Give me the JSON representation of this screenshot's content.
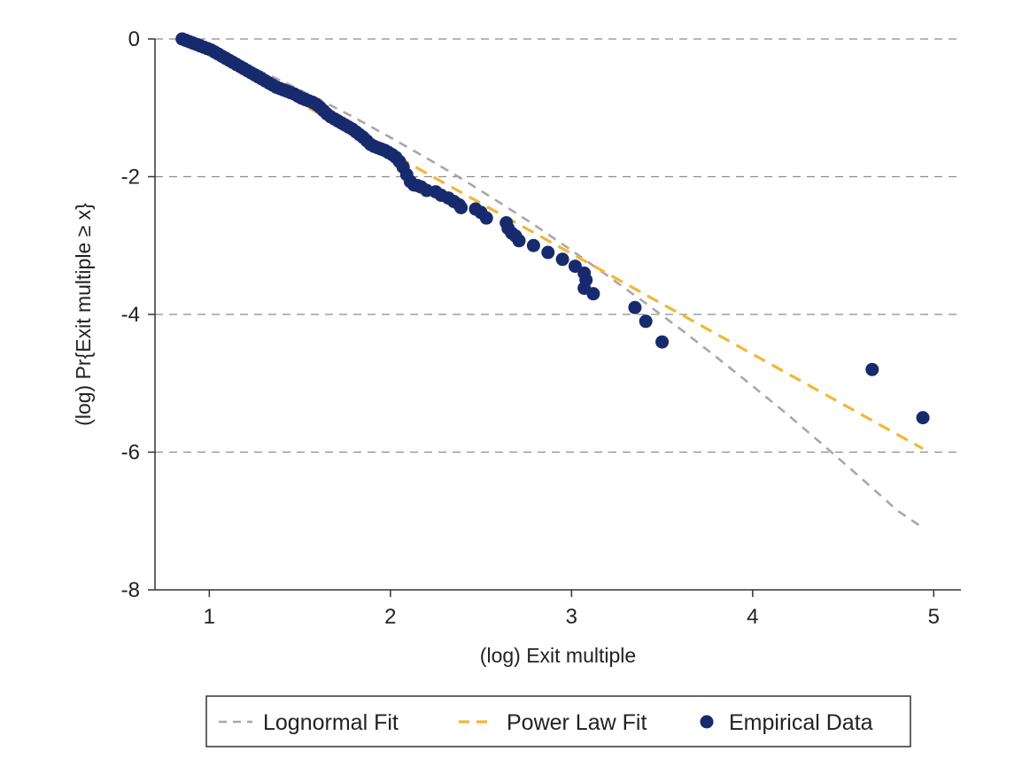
{
  "chart_data": {
    "type": "scatter",
    "title": "",
    "xlabel": "(log) Exit multiple",
    "ylabel": "(log) Pr{Exit multiple ≥ x}",
    "xlim": [
      0.7,
      5.15
    ],
    "ylim": [
      -8,
      0
    ],
    "x_ticks": [
      1,
      2,
      3,
      4,
      5
    ],
    "y_ticks": [
      0,
      -2,
      -4,
      -6,
      -8
    ],
    "grid": "horizontal dashed",
    "legend_placement": "bottom",
    "colors": {
      "lognormal": "#a8a8a8",
      "power_law": "#f2b638",
      "empirical": "#172a6e",
      "grid": "#8c8c8c",
      "axis": "#333333"
    },
    "series": [
      {
        "name": "Lognormal Fit",
        "type": "line",
        "style": "dashed",
        "x": [
          0.86,
          1.0,
          1.2,
          1.4,
          1.6,
          1.8,
          2.0,
          2.2,
          2.4,
          2.6,
          2.8,
          3.0,
          3.2,
          3.4,
          3.6,
          3.8,
          4.0,
          4.2,
          4.4,
          4.6,
          4.8,
          4.94
        ],
        "y": [
          0.0,
          -0.14,
          -0.37,
          -0.61,
          -0.87,
          -1.14,
          -1.43,
          -1.73,
          -2.04,
          -2.37,
          -2.71,
          -3.07,
          -3.44,
          -3.82,
          -4.21,
          -4.62,
          -5.04,
          -5.47,
          -5.92,
          -6.38,
          -6.85,
          -7.1
        ]
      },
      {
        "name": "Power Law Fit",
        "type": "line",
        "style": "dashed",
        "x": [
          1.55,
          4.94
        ],
        "y": [
          -1.0,
          -5.95
        ]
      },
      {
        "name": "Empirical Data",
        "type": "scatter",
        "x": [
          0.85,
          0.87,
          0.89,
          0.91,
          0.93,
          0.95,
          0.97,
          0.99,
          1.01,
          1.03,
          1.05,
          1.07,
          1.09,
          1.11,
          1.13,
          1.15,
          1.17,
          1.19,
          1.21,
          1.23,
          1.25,
          1.27,
          1.29,
          1.31,
          1.33,
          1.35,
          1.37,
          1.39,
          1.41,
          1.43,
          1.45,
          1.47,
          1.49,
          1.51,
          1.53,
          1.55,
          1.57,
          1.59,
          1.61,
          1.63,
          1.65,
          1.67,
          1.69,
          1.71,
          1.73,
          1.75,
          1.77,
          1.79,
          1.81,
          1.83,
          1.85,
          1.87,
          1.89,
          1.91,
          1.93,
          1.95,
          1.97,
          1.99,
          2.01,
          2.03,
          2.05,
          2.07,
          2.09,
          2.11,
          2.13,
          2.15,
          2.17,
          2.2,
          2.25,
          2.28,
          2.32,
          2.35,
          2.38,
          2.39,
          2.47,
          2.5,
          2.53,
          2.64,
          2.65,
          2.67,
          2.69,
          2.71,
          2.79,
          2.87,
          2.95,
          3.02,
          3.07,
          3.08,
          3.07,
          3.12,
          3.35,
          3.41,
          3.5,
          4.66,
          4.94
        ],
        "y": [
          0.0,
          -0.02,
          -0.04,
          -0.06,
          -0.08,
          -0.1,
          -0.12,
          -0.14,
          -0.16,
          -0.19,
          -0.22,
          -0.25,
          -0.28,
          -0.31,
          -0.34,
          -0.37,
          -0.4,
          -0.43,
          -0.46,
          -0.49,
          -0.52,
          -0.55,
          -0.58,
          -0.61,
          -0.64,
          -0.67,
          -0.7,
          -0.72,
          -0.74,
          -0.76,
          -0.78,
          -0.8,
          -0.83,
          -0.86,
          -0.88,
          -0.9,
          -0.92,
          -0.95,
          -0.99,
          -1.04,
          -1.09,
          -1.13,
          -1.16,
          -1.19,
          -1.22,
          -1.25,
          -1.28,
          -1.31,
          -1.35,
          -1.39,
          -1.43,
          -1.48,
          -1.53,
          -1.56,
          -1.58,
          -1.6,
          -1.62,
          -1.65,
          -1.68,
          -1.72,
          -1.78,
          -1.86,
          -1.97,
          -2.07,
          -2.12,
          -2.13,
          -2.15,
          -2.2,
          -2.22,
          -2.27,
          -2.31,
          -2.36,
          -2.41,
          -2.45,
          -2.47,
          -2.52,
          -2.6,
          -2.67,
          -2.75,
          -2.82,
          -2.86,
          -2.93,
          -3.0,
          -3.1,
          -3.2,
          -3.3,
          -3.4,
          -3.5,
          -3.62,
          -3.7,
          -3.9,
          -4.1,
          -4.4,
          -4.8,
          -5.5
        ]
      }
    ],
    "legend": [
      {
        "label": "Lognormal Fit",
        "symbol": "dash",
        "series": 0
      },
      {
        "label": "Power Law Fit",
        "symbol": "dash",
        "series": 1
      },
      {
        "label": "Empirical Data",
        "symbol": "dot",
        "series": 2
      }
    ]
  }
}
